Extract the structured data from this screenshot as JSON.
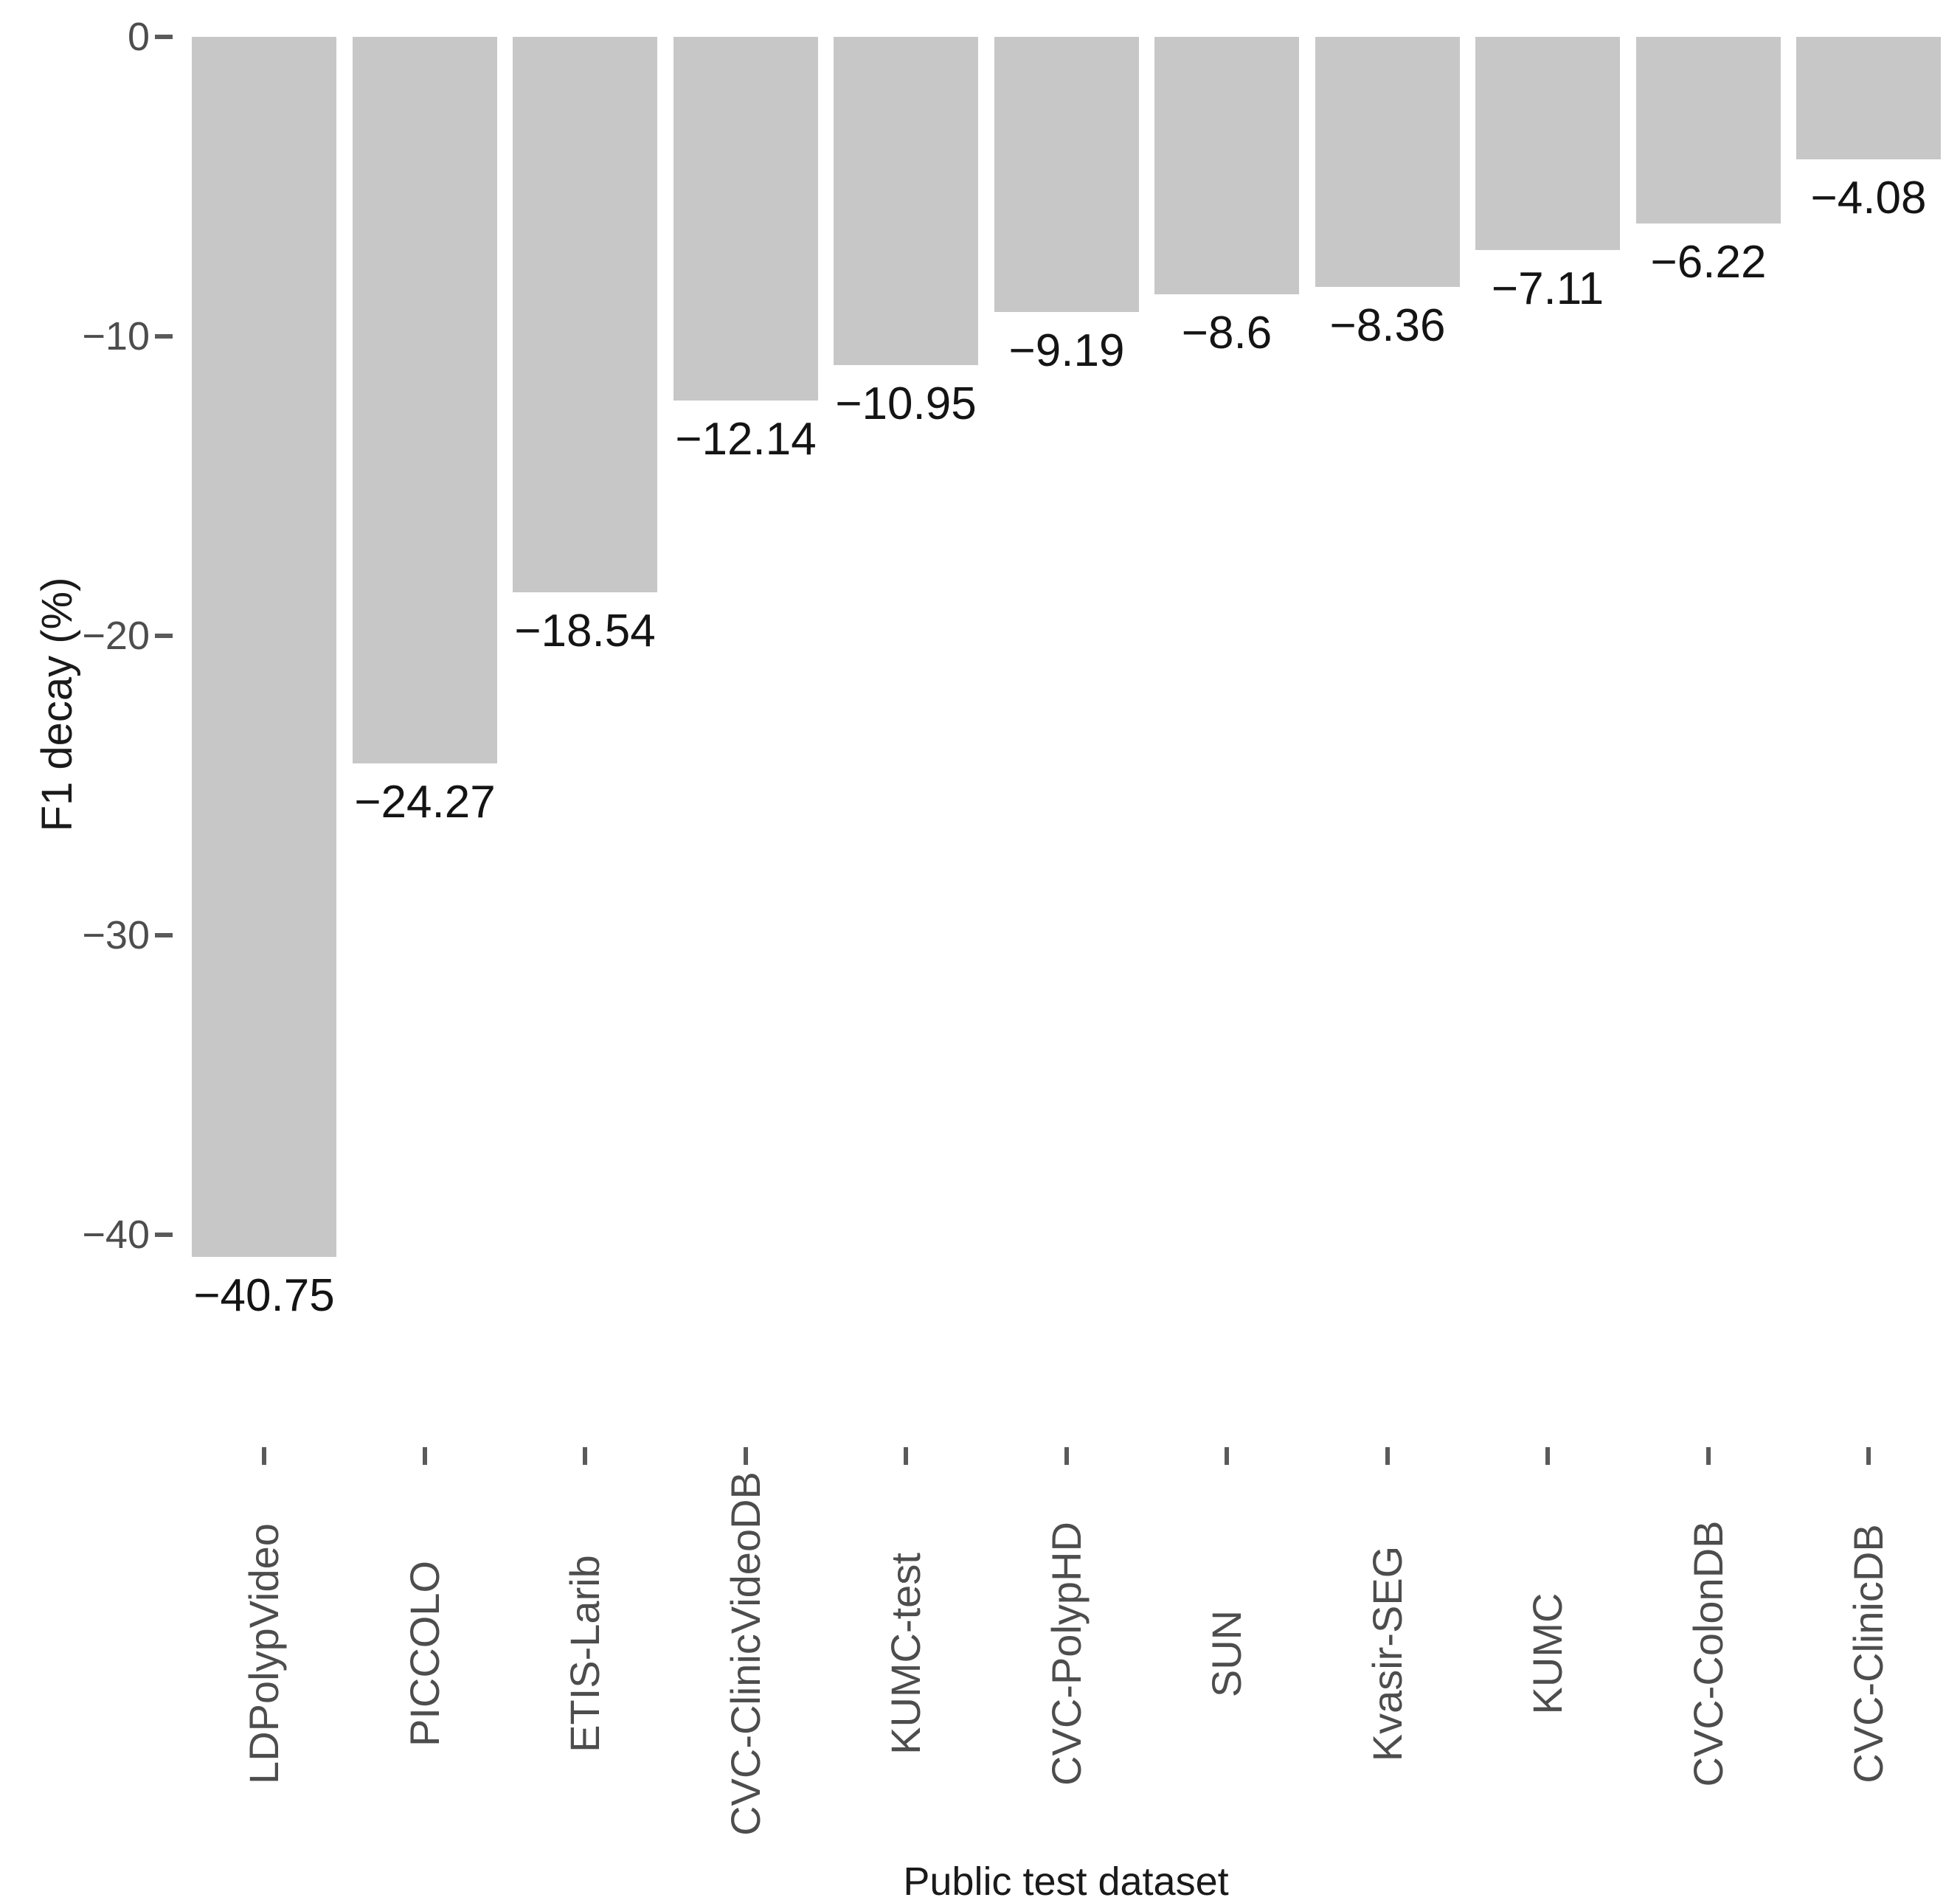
{
  "chart_data": {
    "type": "bar",
    "title": "",
    "xlabel": "Public test dataset",
    "ylabel": "F1 decay (%)",
    "categories": [
      "LDPolypVideo",
      "PICCOLO",
      "ETIS-Larib",
      "CVC-ClinicVideoDB",
      "KUMC-test",
      "CVC-PolypHD",
      "SUN",
      "Kvasir-SEG",
      "KUMC",
      "CVC-ColonDB",
      "CVC-ClinicDB"
    ],
    "values": [
      -40.75,
      -24.27,
      -18.54,
      -12.14,
      -10.95,
      -9.19,
      -8.6,
      -8.36,
      -7.11,
      -6.22,
      -4.08
    ],
    "value_labels": [
      "−40.75",
      "−24.27",
      "−18.54",
      "−12.14",
      "−10.95",
      "−9.19",
      "−8.6",
      "−8.36",
      "−7.11",
      "−6.22",
      "−4.08"
    ],
    "yticks": {
      "values": [
        0,
        -10,
        -20,
        -30,
        -40
      ],
      "labels": [
        "0",
        "−10",
        "−20",
        "−30",
        "−40"
      ]
    },
    "ylim": [
      -44,
      0
    ],
    "grid": false,
    "legend": null,
    "colors": {
      "bar_fill": "#c7c7c7",
      "value_label": "#141414",
      "tick_label": "#4d4d4d",
      "tick_mark": "#5a5a5a",
      "axis_title": "#1a1a1a",
      "background": "#ffffff"
    }
  }
}
